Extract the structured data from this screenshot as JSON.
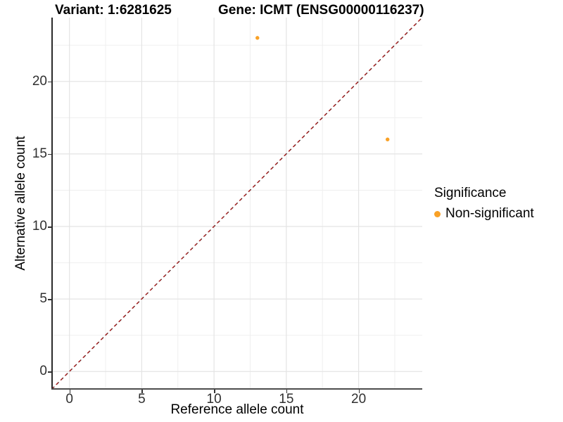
{
  "titles": {
    "variant": "Variant: 1:6281625",
    "gene": "Gene: ICMT (ENSG00000116237)"
  },
  "axes": {
    "x_label": "Reference allele count",
    "y_label": "Alternative allele count"
  },
  "legend": {
    "title": "Significance",
    "items": [
      {
        "label": "Non-significant",
        "color": "#F9A126",
        "marker": "circle-icon"
      }
    ]
  },
  "chart_data": {
    "type": "scatter",
    "title": "Variant: 1:6281625   Gene: ICMT (ENSG00000116237)",
    "xlabel": "Reference allele count",
    "ylabel": "Alternative allele count",
    "xlim": [
      -1.2,
      24.4
    ],
    "ylim": [
      -1.2,
      24.4
    ],
    "x_ticks": [
      0,
      5,
      10,
      15,
      20
    ],
    "y_ticks": [
      0,
      5,
      10,
      15,
      20
    ],
    "x_minor_gridlines": [
      2.5,
      7.5,
      12.5,
      17.5,
      22.5
    ],
    "y_minor_gridlines": [
      2.5,
      7.5,
      12.5,
      17.5,
      22.5
    ],
    "grid": true,
    "legend_position": "right",
    "series": [
      {
        "name": "Non-significant",
        "color": "#F9A126",
        "marker_radius": 2.7,
        "points": [
          {
            "x": 13,
            "y": 23
          },
          {
            "x": 22,
            "y": 16
          }
        ]
      }
    ],
    "reference_line": {
      "label": "identity y = x",
      "from": [
        -1.2,
        -1.2
      ],
      "to": [
        24.4,
        24.4
      ],
      "style": "dashed",
      "colors": [
        "#1A1A1A",
        "#B22222"
      ]
    }
  },
  "colors": {
    "point_orange": "#F9A126",
    "dash_black": "#1A1A1A",
    "dash_red": "#B22222",
    "grid_major": "#E4E4E4",
    "grid_minor": "#EFEFEF",
    "axis_line": "#4D4D4D",
    "tick_text": "#303030"
  }
}
